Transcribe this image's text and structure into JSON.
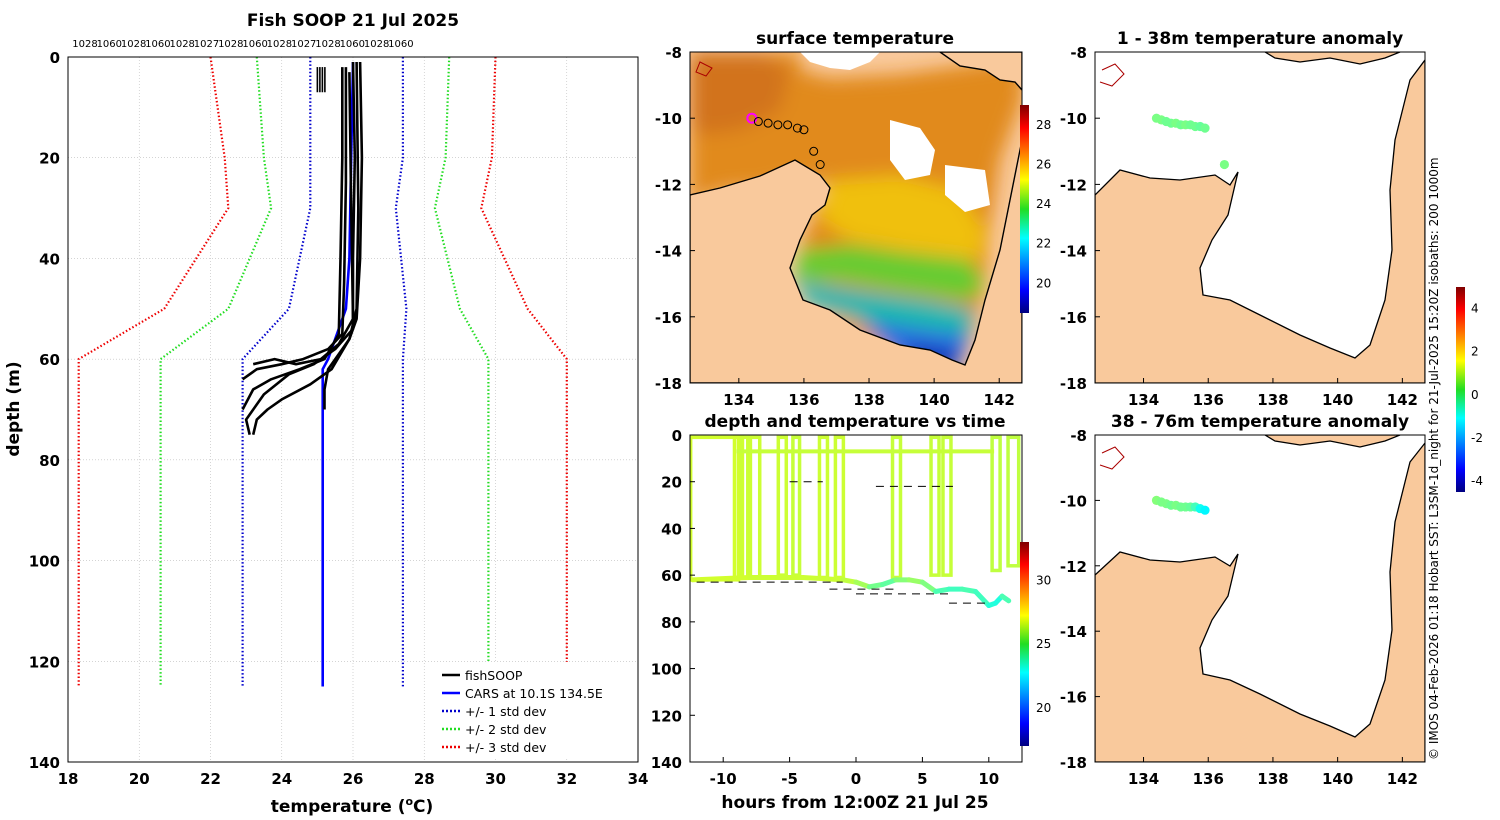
{
  "figure_title": "Fish SOOP 21 Jul 2025",
  "side_caption": "© IMOS 04-Feb-2026 01:18 Hobart SST: L3SM-1d_night for 21-Jul-2025 15:20Z isobaths: 200  1000m",
  "colors": {
    "fishsoop": "#000000",
    "cars": "#0000ff",
    "std1": "#0000cc",
    "std2": "#22dd22",
    "std3": "#ee0000",
    "land": "#f9c99c",
    "coast": "#000000",
    "river": "#aa0000",
    "grid": "#bbbbbb"
  },
  "chart_data": [
    {
      "id": "profile",
      "type": "line",
      "title": "",
      "xlabel": "temperature (",
      "xlabel_unit": "o",
      "xlabel_end": "C)",
      "ylabel": "depth (m)",
      "xlim": [
        18,
        34
      ],
      "ylim": [
        0,
        140
      ],
      "y_reversed": true,
      "xticks": [
        "18",
        "20",
        "22",
        "24",
        "26",
        "28",
        "30",
        "32",
        "34"
      ],
      "yticks": [
        "0",
        "20",
        "40",
        "60",
        "80",
        "100",
        "120",
        "140"
      ],
      "top_labels": [
        "1028",
        "1060",
        "1028",
        "1060",
        "1028",
        "1027",
        "1028",
        "1060",
        "1028",
        "1027",
        "1028",
        "1060",
        "1028",
        "1060"
      ],
      "legend": [
        "fishSOOP",
        "CARS at 10.1S 134.5E",
        "+/- 1 std dev",
        "+/- 2 std dev",
        "+/- 3 std dev"
      ],
      "series": [
        {
          "name": "CARS at 10.1S 134.5E",
          "style": "solid",
          "color_key": "cars",
          "points": [
            [
              26.0,
              1
            ],
            [
              25.95,
              20
            ],
            [
              25.9,
              40
            ],
            [
              25.8,
              50
            ],
            [
              25.3,
              60
            ],
            [
              25.15,
              62
            ],
            [
              25.15,
              80
            ],
            [
              25.15,
              125
            ]
          ]
        },
        {
          "name": "+1 std dev",
          "style": "dotted",
          "color_key": "std1",
          "points": [
            [
              27.4,
              0
            ],
            [
              27.4,
              20
            ],
            [
              27.2,
              30
            ],
            [
              27.5,
              50
            ],
            [
              27.4,
              60
            ],
            [
              27.4,
              125
            ]
          ]
        },
        {
          "name": "-1 std dev",
          "style": "dotted",
          "color_key": "std1",
          "points": [
            [
              24.8,
              0
            ],
            [
              24.8,
              20
            ],
            [
              24.8,
              30
            ],
            [
              24.2,
              50
            ],
            [
              22.9,
              60
            ],
            [
              22.9,
              125
            ]
          ]
        },
        {
          "name": "+2 std dev",
          "style": "dotted",
          "color_key": "std2",
          "points": [
            [
              28.7,
              0
            ],
            [
              28.6,
              20
            ],
            [
              28.3,
              30
            ],
            [
              29.0,
              50
            ],
            [
              29.8,
              60
            ],
            [
              29.8,
              125
            ]
          ]
        },
        {
          "name": "-2 std dev",
          "style": "dotted",
          "color_key": "std2",
          "points": [
            [
              23.3,
              0
            ],
            [
              23.5,
              20
            ],
            [
              23.7,
              30
            ],
            [
              22.5,
              50
            ],
            [
              20.6,
              60
            ],
            [
              20.6,
              125
            ]
          ]
        },
        {
          "name": "+3 std dev",
          "style": "dotted",
          "color_key": "std3",
          "points": [
            [
              30.0,
              0
            ],
            [
              29.9,
              20
            ],
            [
              29.6,
              30
            ],
            [
              30.9,
              50
            ],
            [
              32.0,
              60
            ],
            [
              32.0,
              125
            ]
          ]
        },
        {
          "name": "-3 std dev",
          "style": "dotted",
          "color_key": "std3",
          "points": [
            [
              22.0,
              0
            ],
            [
              22.4,
              20
            ],
            [
              22.5,
              30
            ],
            [
              20.7,
              50
            ],
            [
              18.3,
              60
            ],
            [
              18.3,
              125
            ]
          ]
        }
      ],
      "fishsoop_profiles": [
        [
          [
            26.2,
            1
          ],
          [
            26.25,
            20
          ],
          [
            26.2,
            40
          ],
          [
            26.1,
            52
          ],
          [
            25.9,
            56
          ],
          [
            25.6,
            59
          ],
          [
            25.3,
            62
          ],
          [
            25.2,
            66
          ],
          [
            25.2,
            70
          ]
        ],
        [
          [
            25.7,
            2
          ],
          [
            25.7,
            20
          ],
          [
            25.65,
            40
          ],
          [
            25.6,
            55
          ],
          [
            25.2,
            60
          ],
          [
            24.5,
            62
          ],
          [
            23.7,
            64
          ],
          [
            23.2,
            66
          ],
          [
            22.9,
            70
          ]
        ],
        [
          [
            26.0,
            1
          ],
          [
            26.05,
            20
          ],
          [
            26.0,
            40
          ],
          [
            26.0,
            54
          ],
          [
            25.5,
            58
          ],
          [
            24.9,
            61
          ],
          [
            24.2,
            63
          ],
          [
            23.5,
            67
          ],
          [
            23.0,
            72
          ],
          [
            23.1,
            75
          ]
        ],
        [
          [
            25.8,
            2
          ],
          [
            25.8,
            25
          ],
          [
            25.75,
            45
          ],
          [
            25.7,
            55
          ],
          [
            25.3,
            58
          ],
          [
            24.6,
            60
          ],
          [
            24.0,
            61
          ],
          [
            23.3,
            62
          ],
          [
            22.9,
            64
          ]
        ],
        [
          [
            26.1,
            1
          ],
          [
            26.15,
            30
          ],
          [
            26.1,
            50
          ],
          [
            25.9,
            56
          ],
          [
            25.4,
            62
          ],
          [
            24.8,
            65
          ],
          [
            24.0,
            68
          ],
          [
            23.6,
            70
          ],
          [
            23.3,
            72
          ],
          [
            23.2,
            75
          ]
        ],
        [
          [
            25.9,
            3
          ],
          [
            25.95,
            30
          ],
          [
            26.0,
            52
          ],
          [
            25.6,
            57
          ],
          [
            25.1,
            60
          ],
          [
            24.4,
            61
          ],
          [
            23.8,
            60
          ],
          [
            23.2,
            61
          ]
        ]
      ],
      "surface_trace_x": [
        25.0,
        25.3
      ],
      "surface_trace_depth": [
        2,
        7
      ]
    },
    {
      "id": "sst_map",
      "type": "heatmap",
      "title": "surface temperature",
      "xlim": [
        132.5,
        142.7
      ],
      "ylim": [
        -18,
        -8
      ],
      "xticks": [
        "134",
        "136",
        "138",
        "140",
        "142"
      ],
      "yticks": [
        "-8",
        "-10",
        "-12",
        "-14",
        "-16",
        "-18"
      ],
      "colorbar_ticks": [
        "28",
        "26",
        "24",
        "22",
        "20"
      ],
      "colorbar_range": [
        18.5,
        29
      ],
      "track": [
        [
          134.4,
          -10.0
        ],
        [
          134.6,
          -10.1
        ],
        [
          134.9,
          -10.15
        ],
        [
          135.2,
          -10.2
        ],
        [
          135.5,
          -10.2
        ],
        [
          135.8,
          -10.3
        ],
        [
          136.0,
          -10.35
        ],
        [
          136.3,
          -11.0
        ],
        [
          136.5,
          -11.4
        ]
      ]
    },
    {
      "id": "anomaly_1_38",
      "type": "scatter",
      "title": "1 - 38m temperature anomaly",
      "xlim": [
        132.5,
        142.7
      ],
      "ylim": [
        -18,
        -8
      ],
      "xticks": [
        "134",
        "136",
        "138",
        "140",
        "142"
      ],
      "yticks": [
        "-8",
        "-10",
        "-12",
        "-14",
        "-16",
        "-18"
      ],
      "points": [
        [
          134.4,
          -10.0
        ],
        [
          134.55,
          -10.05
        ],
        [
          134.7,
          -10.1
        ],
        [
          134.85,
          -10.15
        ],
        [
          135.0,
          -10.15
        ],
        [
          135.15,
          -10.2
        ],
        [
          135.3,
          -10.2
        ],
        [
          135.45,
          -10.2
        ],
        [
          135.6,
          -10.25
        ],
        [
          135.75,
          -10.25
        ],
        [
          135.9,
          -10.3
        ],
        [
          136.5,
          -11.4
        ]
      ],
      "anomaly": [
        0.2,
        0.2,
        0.1,
        0.1,
        0.2,
        0.1,
        0.2,
        0.1,
        0.1,
        0.0,
        0.1,
        0.2
      ]
    },
    {
      "id": "anomaly_38_76",
      "type": "scatter",
      "title": "38 - 76m temperature anomaly",
      "xlim": [
        132.5,
        142.7
      ],
      "ylim": [
        -18,
        -8
      ],
      "xticks": [
        "134",
        "136",
        "138",
        "140",
        "142"
      ],
      "yticks": [
        "-8",
        "-10",
        "-12",
        "-14",
        "-16",
        "-18"
      ],
      "points": [
        [
          134.4,
          -10.0
        ],
        [
          134.55,
          -10.05
        ],
        [
          134.7,
          -10.1
        ],
        [
          134.85,
          -10.15
        ],
        [
          135.0,
          -10.15
        ],
        [
          135.15,
          -10.2
        ],
        [
          135.3,
          -10.2
        ],
        [
          135.45,
          -10.2
        ],
        [
          135.6,
          -10.2
        ],
        [
          135.75,
          -10.25
        ],
        [
          135.9,
          -10.3
        ]
      ],
      "anomaly": [
        0.3,
        0.2,
        0.2,
        0.1,
        0.2,
        0.1,
        0.1,
        0.0,
        -0.3,
        -0.8,
        -1.0
      ]
    },
    {
      "id": "depth_time",
      "type": "scatter",
      "title": "depth and temperature vs time",
      "xlabel": "hours from 12:00Z 21 Jul 25",
      "xlim": [
        -12.5,
        12.5
      ],
      "ylim": [
        0,
        140
      ],
      "y_reversed": true,
      "xticks": [
        "-10",
        "-5",
        "0",
        "5",
        "10"
      ],
      "yticks": [
        "0",
        "20",
        "40",
        "60",
        "80",
        "100",
        "120",
        "140"
      ],
      "colorbar_ticks": [
        "30",
        "25",
        "20"
      ],
      "colorbar_range": [
        17,
        33
      ],
      "casts": [
        {
          "t0": -12.3,
          "t1": -9.0,
          "bottom": 62,
          "temp": 26.3
        },
        {
          "t0": -9.0,
          "t1": -8.7,
          "bottom": 61,
          "temp": 26.3
        },
        {
          "t0": -8.5,
          "t1": -8.3,
          "bottom": 61,
          "temp": 26.2
        },
        {
          "t0": -7.8,
          "t1": -7.4,
          "bottom": 61,
          "temp": 26.2
        },
        {
          "t0": -5.7,
          "t1": -5.4,
          "bottom": 60,
          "temp": 26.2
        },
        {
          "t0": -4.6,
          "t1": -4.4,
          "bottom": 60,
          "temp": 26.1
        },
        {
          "t0": -2.6,
          "t1": -2.3,
          "bottom": 61,
          "temp": 26.2
        },
        {
          "t0": -1.4,
          "t1": -1.1,
          "bottom": 61,
          "temp": 26.2
        },
        {
          "t0": 2.9,
          "t1": 3.2,
          "bottom": 61,
          "temp": 26.1
        },
        {
          "t0": 5.8,
          "t1": 6.1,
          "bottom": 60,
          "temp": 26.1
        },
        {
          "t0": 6.7,
          "t1": 7.0,
          "bottom": 60,
          "temp": 26.1
        },
        {
          "t0": 10.4,
          "t1": 10.7,
          "bottom": 58,
          "temp": 26.0
        },
        {
          "t0": 11.6,
          "t1": 12.1,
          "bottom": 56,
          "temp": 26.0
        }
      ],
      "bottom_track": [
        [
          -12.3,
          62
        ],
        [
          -8,
          61
        ],
        [
          -4,
          61
        ],
        [
          -1,
          62
        ],
        [
          0,
          63
        ],
        [
          1,
          65
        ],
        [
          2,
          64
        ],
        [
          3,
          62
        ],
        [
          4,
          62
        ],
        [
          5,
          63
        ],
        [
          6,
          67
        ],
        [
          7,
          66
        ],
        [
          8,
          66
        ],
        [
          9,
          67
        ],
        [
          10,
          73
        ],
        [
          10.5,
          72
        ],
        [
          11,
          69
        ],
        [
          11.5,
          71
        ]
      ],
      "bottom_temp": [
        26.3,
        26.2,
        26.2,
        26.0,
        25.6,
        24.8,
        24.5,
        25.1,
        25.4,
        25.0,
        24.2,
        24.0,
        24.2,
        24.0,
        23.6,
        23.5,
        24.2,
        24.0
      ],
      "dashed_segments": [
        [
          [
            -12,
            63
          ],
          [
            -1,
            63
          ]
        ],
        [
          [
            -5,
            20
          ],
          [
            -2.5,
            20
          ]
        ],
        [
          [
            1.5,
            22
          ],
          [
            7.3,
            22
          ]
        ],
        [
          [
            -2,
            66
          ],
          [
            3,
            66
          ]
        ],
        [
          [
            0,
            68
          ],
          [
            7,
            68
          ]
        ],
        [
          [
            7,
            72
          ],
          [
            10,
            72
          ]
        ]
      ]
    }
  ]
}
